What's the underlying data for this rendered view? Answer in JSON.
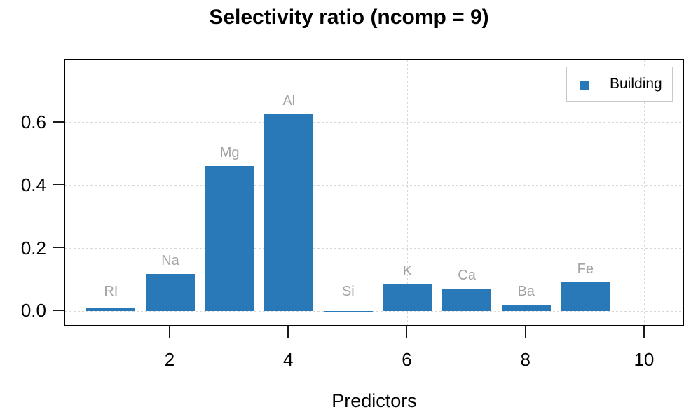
{
  "title": "Selectivity ratio (ncomp = 9)",
  "axes": {
    "xlabel": "Predictors",
    "xtick_labels": [
      "2",
      "4",
      "6",
      "8",
      "10"
    ],
    "ytick_labels": [
      "0.0",
      "0.2",
      "0.4",
      "0.6"
    ]
  },
  "legend": {
    "label": "Building"
  },
  "colors": {
    "bar": "#2979b8",
    "grid": "#d8d8d8",
    "axis": "#000000",
    "bar_label": "#a3a3a3",
    "legend_border": "#c9c9c9",
    "background": "#ffffff",
    "text": "#000000"
  },
  "chart_data": {
    "type": "bar",
    "title": "Selectivity ratio (ncomp = 9)",
    "xlabel": "Predictors",
    "ylabel": "",
    "categories": [
      "RI",
      "Na",
      "Mg",
      "Al",
      "Si",
      "K",
      "Ca",
      "Ba",
      "Fe"
    ],
    "x_positions": [
      1,
      2,
      3,
      4,
      5,
      6,
      7,
      8,
      9
    ],
    "values": [
      0.01,
      0.12,
      0.462,
      0.627,
      0.001,
      0.085,
      0.072,
      0.02,
      0.092
    ],
    "series": [
      {
        "name": "Building",
        "color": "#2979b8"
      }
    ],
    "xticks": [
      2,
      4,
      6,
      8,
      10
    ],
    "yticks": [
      0,
      0.2,
      0.4,
      0.6
    ],
    "xlim": [
      0.2275,
      10.6745
    ],
    "ylim": [
      -0.048,
      0.8
    ],
    "bar_width_units": 0.83,
    "grid": "dotted",
    "legend_position": "top-right",
    "bar_label_color": "#a3a3a3"
  }
}
